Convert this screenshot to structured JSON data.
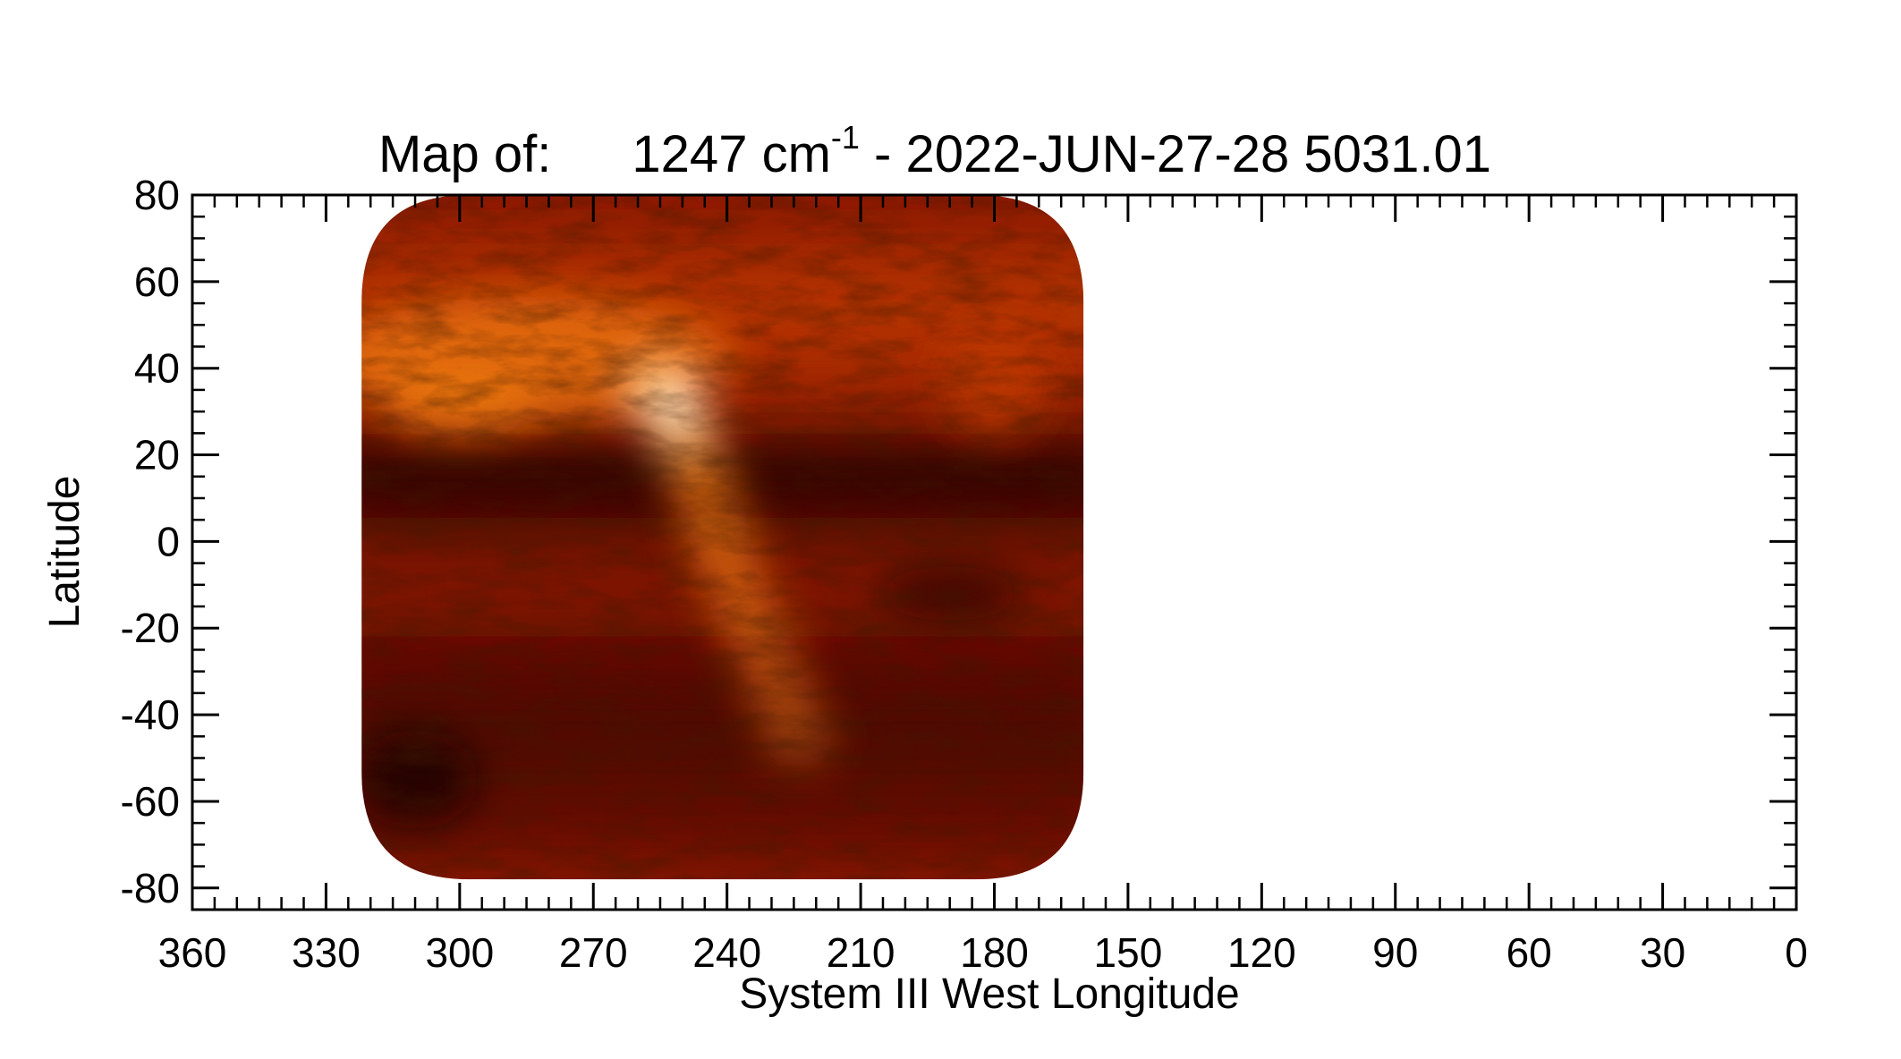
{
  "chart_data": {
    "type": "heatmap",
    "title_prefix": "Map of:",
    "title_value": "1247 cm",
    "title_superscript": "-1",
    "title_suffix": " - 2022-JUN-27-28 5031.01",
    "xlabel": "System III West Longitude",
    "ylabel": "Latitude",
    "xlim": [
      360,
      0
    ],
    "ylim": [
      -85,
      80
    ],
    "x_ticks": [
      "360",
      "330",
      "300",
      "270",
      "240",
      "210",
      "180",
      "150",
      "120",
      "90",
      "60",
      "30",
      "0"
    ],
    "x_tick_values": [
      360,
      330,
      300,
      270,
      240,
      210,
      180,
      150,
      120,
      90,
      60,
      30,
      0
    ],
    "y_ticks": [
      "80",
      "60",
      "40",
      "20",
      "0",
      "-20",
      "-40",
      "-60",
      "-80"
    ],
    "y_tick_values": [
      80,
      60,
      40,
      20,
      0,
      -20,
      -40,
      -60,
      -80
    ],
    "grid": false,
    "colormap": "red-temperature",
    "colormap_stops": [
      "#140000",
      "#4a0400",
      "#8c1a00",
      "#c43c02",
      "#ef7a12",
      "#ffc86a",
      "#fff2dc"
    ],
    "data_extent": {
      "lon_east": 322,
      "lon_west": 160,
      "lat_south": -78,
      "lat_north": 80
    },
    "features": [
      {
        "name": "bright-arc",
        "lon": 252,
        "lat": 31,
        "intensity": 0.98
      },
      {
        "name": "hot-spot-nw",
        "lon": 285,
        "lat": 46,
        "intensity": 0.85
      },
      {
        "name": "dark-equatorial-belt",
        "lat": 10,
        "intensity": 0.15
      },
      {
        "name": "dark-southern-belt",
        "lat": -40,
        "intensity": 0.2
      }
    ]
  }
}
